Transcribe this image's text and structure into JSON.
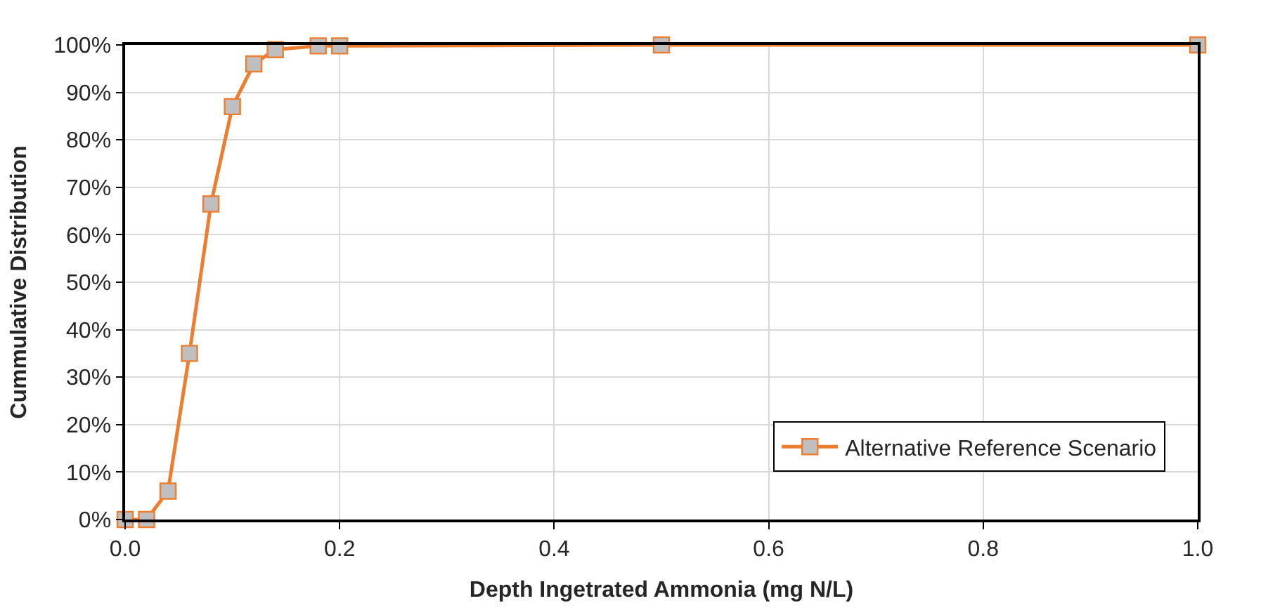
{
  "chart_data": {
    "type": "line",
    "xlabel": "Depth Ingetrated Ammonia (mg N/L)",
    "ylabel": "Cummulative Distribution",
    "x": [
      0,
      0.02,
      0.04,
      0.06,
      0.08,
      0.1,
      0.12,
      0.14,
      0.18,
      0.2,
      0.5,
      1.0
    ],
    "series": [
      {
        "name": "Alternative Reference Scenario",
        "color": "#ed7d31",
        "values": [
          0,
          0,
          6,
          35,
          66.5,
          87,
          96,
          99,
          99.8,
          99.8,
          100,
          100
        ]
      }
    ],
    "xlim": [
      0,
      1
    ],
    "xticks": [
      {
        "value": 0,
        "label": "0.0"
      },
      {
        "value": 0.2,
        "label": "0.2"
      },
      {
        "value": 0.4,
        "label": "0.4"
      },
      {
        "value": 0.6,
        "label": "0.6"
      },
      {
        "value": 0.8,
        "label": "0.8"
      },
      {
        "value": 1,
        "label": "1.0"
      }
    ],
    "ylim": [
      0,
      100
    ],
    "yticks": [
      {
        "value": 0,
        "label": "0%"
      },
      {
        "value": 10,
        "label": "10%"
      },
      {
        "value": 20,
        "label": "20%"
      },
      {
        "value": 30,
        "label": "30%"
      },
      {
        "value": 40,
        "label": "40%"
      },
      {
        "value": 50,
        "label": "50%"
      },
      {
        "value": 60,
        "label": "60%"
      },
      {
        "value": 70,
        "label": "70%"
      },
      {
        "value": 80,
        "label": "80%"
      },
      {
        "value": 90,
        "label": "90%"
      },
      {
        "value": 100,
        "label": "100%"
      }
    ],
    "grid": true,
    "legend": "bottom right",
    "marker": "square",
    "line_style": "solid"
  }
}
